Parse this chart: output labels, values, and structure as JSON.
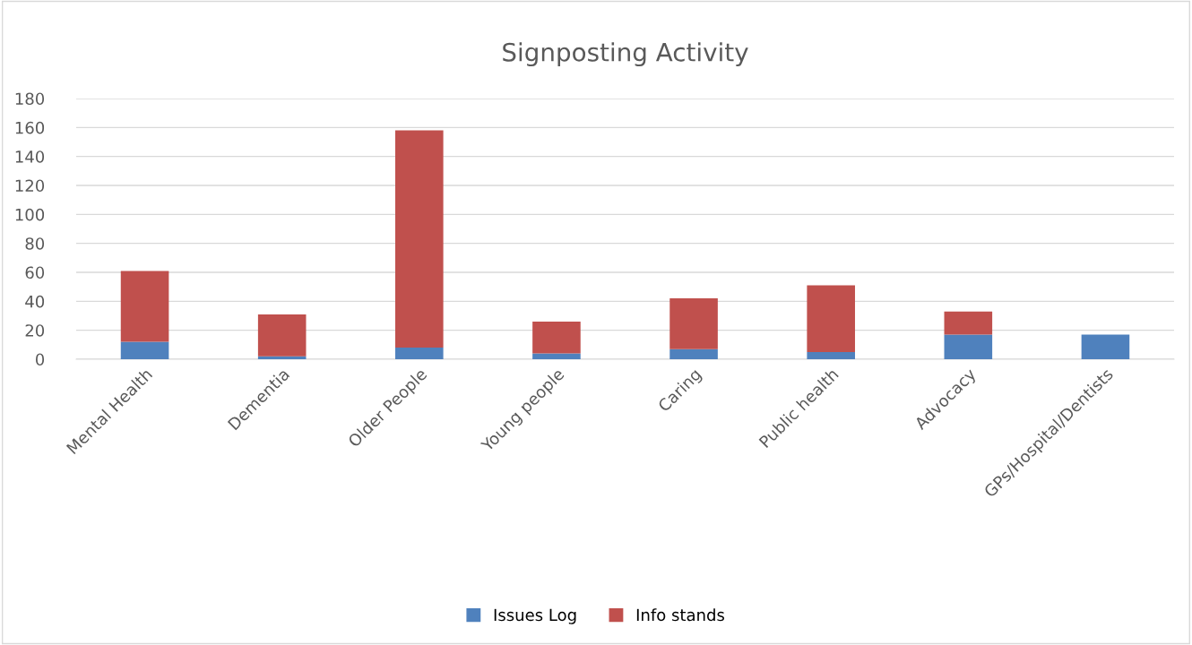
{
  "chart_data": {
    "type": "bar",
    "title": "Signposting Activity",
    "stacked": true,
    "categories": [
      "Mental Health",
      "Dementia",
      "Older People",
      "Young people",
      "Caring",
      "Public health",
      "Advocacy",
      "GPs/Hospital/Dentists"
    ],
    "series": [
      {
        "name": "Issues Log",
        "color": "#4f81bd",
        "values": [
          12,
          2,
          8,
          4,
          7,
          5,
          17,
          17
        ]
      },
      {
        "name": "Info stands",
        "color": "#c0504d",
        "values": [
          49,
          29,
          150,
          22,
          35,
          46,
          16,
          0
        ]
      }
    ],
    "ylim": [
      0,
      180
    ],
    "yticks": [
      0,
      20,
      40,
      60,
      80,
      100,
      120,
      140,
      160,
      180
    ],
    "grid": "y",
    "legend": "bottom"
  }
}
